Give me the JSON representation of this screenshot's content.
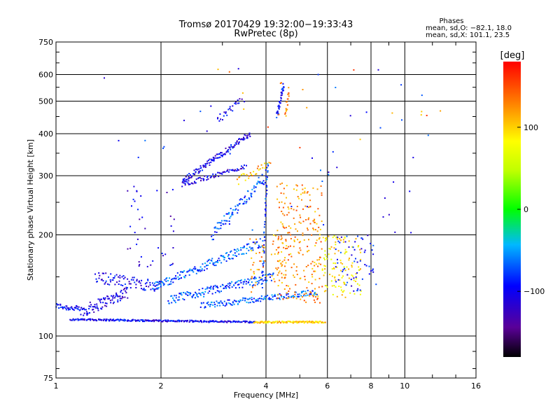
{
  "chart_data": {
    "type": "scatter",
    "title": "Tromsø 20170429 19:32:00−19:33:43",
    "subtitle": "RwPretec (8p)",
    "xlabel": "Frequency [MHz]",
    "ylabel": "Stationary phase Virtual Height [km]",
    "x_scale": "log",
    "y_scale": "log",
    "xlim": [
      1,
      16
    ],
    "ylim": [
      75,
      750
    ],
    "x_ticks": [
      1,
      2,
      4,
      6,
      8,
      10,
      16
    ],
    "x_tick_labels": [
      "1",
      "2",
      "4",
      "6",
      "8",
      "10",
      "16"
    ],
    "y_ticks": [
      75,
      100,
      200,
      300,
      400,
      500,
      600,
      750
    ],
    "y_tick_labels": [
      "75",
      "100",
      "200",
      "300",
      "400",
      "500",
      "600",
      "750"
    ],
    "x_grid": [
      2,
      4,
      6,
      8,
      10
    ],
    "y_grid": [
      100,
      200,
      300,
      400,
      500,
      600
    ],
    "grid": true,
    "legend": {
      "heading": "Phases",
      "lines": [
        "mean, sd,O: −82.1, 18.0",
        "mean, sd,X: 101.1, 23.5"
      ],
      "placement": "top-right"
    },
    "colorbar": {
      "label": "[deg]",
      "range": [
        -180,
        180
      ],
      "ticks": [
        100,
        0,
        -100
      ],
      "tick_labels": [
        "100",
        "0",
        "−100"
      ]
    },
    "traces": [
      {
        "kind": "trace",
        "x0": 1.0,
        "x1": 1.18,
        "y0": 123,
        "y1": 120,
        "phase": -95,
        "n": 40,
        "jitter": 0.02
      },
      {
        "kind": "trace",
        "x0": 1.18,
        "x1": 1.6,
        "y0": 118,
        "y1": 135,
        "phase": -110,
        "n": 90,
        "jitter": 0.04
      },
      {
        "kind": "trace",
        "x0": 1.1,
        "x1": 3.7,
        "y0": 112,
        "y1": 110,
        "phase": -100,
        "n": 260,
        "jitter": 0.006
      },
      {
        "kind": "trace",
        "x0": 3.7,
        "x1": 5.9,
        "y0": 110,
        "y1": 110,
        "phase": 100,
        "n": 120,
        "jitter": 0.006
      },
      {
        "kind": "trace",
        "x0": 1.3,
        "x1": 2.0,
        "y0": 150,
        "y1": 140,
        "phase": -100,
        "n": 90,
        "jitter": 0.04
      },
      {
        "kind": "trace",
        "x0": 1.9,
        "x1": 3.9,
        "y0": 140,
        "y1": 190,
        "phase": -70,
        "n": 160,
        "jitter": 0.03
      },
      {
        "kind": "trace",
        "x0": 2.1,
        "x1": 4.2,
        "y0": 128,
        "y1": 150,
        "phase": -75,
        "n": 150,
        "jitter": 0.03
      },
      {
        "kind": "trace",
        "x0": 2.6,
        "x1": 5.6,
        "y0": 123,
        "y1": 135,
        "phase": -70,
        "n": 150,
        "jitter": 0.02
      },
      {
        "kind": "trace",
        "x0": 2.8,
        "x1": 4.0,
        "y0": 200,
        "y1": 300,
        "phase": -75,
        "n": 90,
        "jitter": 0.04
      },
      {
        "kind": "trace",
        "x0": 2.3,
        "x1": 3.6,
        "y0": 288,
        "y1": 400,
        "phase": -105,
        "n": 130,
        "jitter": 0.02
      },
      {
        "kind": "trace",
        "x0": 2.3,
        "x1": 3.5,
        "y0": 282,
        "y1": 320,
        "phase": -110,
        "n": 70,
        "jitter": 0.015
      },
      {
        "kind": "trace",
        "x0": 3.3,
        "x1": 4.1,
        "y0": 290,
        "y1": 330,
        "phase": 110,
        "n": 30,
        "jitter": 0.03
      },
      {
        "kind": "trace",
        "x0": 2.9,
        "x1": 3.4,
        "y0": 440,
        "y1": 500,
        "phase": -105,
        "n": 25,
        "jitter": 0.03
      },
      {
        "kind": "trace",
        "x0": 3.9,
        "x1": 4.05,
        "y0": 140,
        "y1": 330,
        "phase": -75,
        "n": 45,
        "jitter": 0.02
      },
      {
        "kind": "trace",
        "x0": 4.3,
        "x1": 4.5,
        "y0": 450,
        "y1": 560,
        "phase": -95,
        "n": 35,
        "jitter": 0.02
      },
      {
        "kind": "trace",
        "x0": 4.55,
        "x1": 4.65,
        "y0": 450,
        "y1": 540,
        "phase": 130,
        "n": 18,
        "jitter": 0.02
      },
      {
        "kind": "cloud",
        "x0": 4.3,
        "x1": 5.8,
        "y0": 125,
        "y1": 290,
        "phase": 125,
        "n": 240
      },
      {
        "kind": "cloud",
        "x0": 3.6,
        "x1": 4.6,
        "y0": 135,
        "y1": 200,
        "phase": 120,
        "n": 60
      },
      {
        "kind": "cloud",
        "x0": 5.8,
        "x1": 7.5,
        "y0": 130,
        "y1": 200,
        "phase": 90,
        "n": 120
      },
      {
        "kind": "cloud",
        "x0": 6.3,
        "x1": 8.3,
        "y0": 135,
        "y1": 200,
        "phase": -95,
        "n": 60
      },
      {
        "kind": "cloud",
        "x0": 1.6,
        "x1": 2.2,
        "y0": 160,
        "y1": 280,
        "phase": -110,
        "n": 40
      },
      {
        "kind": "cloud",
        "x0": 1.3,
        "x1": 12,
        "y0": 200,
        "y1": 650,
        "phase": -90,
        "n": 45
      },
      {
        "kind": "cloud",
        "x0": 2.4,
        "x1": 13,
        "y0": 330,
        "y1": 640,
        "phase": 130,
        "n": 18
      }
    ]
  }
}
